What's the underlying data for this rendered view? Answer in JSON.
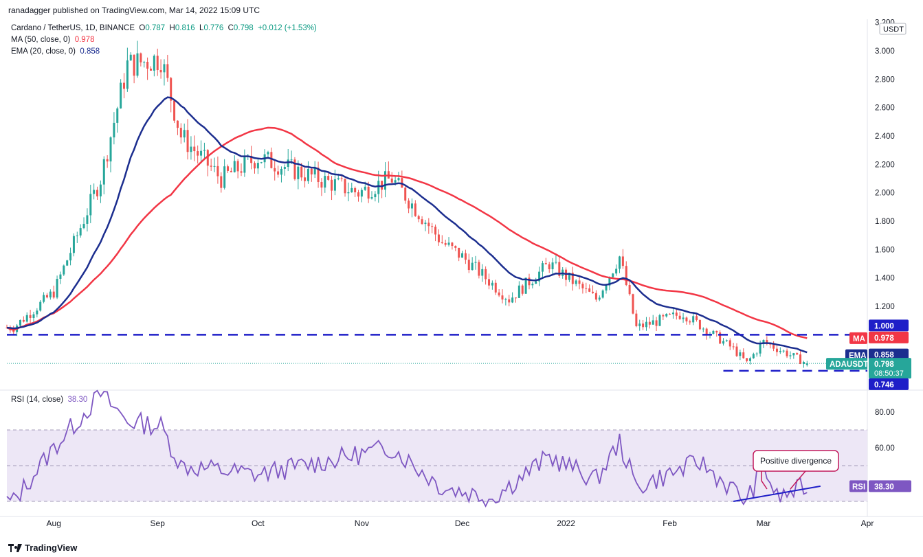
{
  "publisher": "ranadagger published on TradingView.com, Mar 14, 2022 15:09 UTC",
  "legend": {
    "symbol": "Cardano / TetherUS, 1D, BINANCE",
    "open_label": "O",
    "open": "0.787",
    "high_label": "H",
    "high": "0.816",
    "low_label": "L",
    "low": "0.776",
    "close_label": "C",
    "close": "0.798",
    "change": "+0.012 (+1.53%)",
    "ma_label": "MA (50, close, 0)",
    "ma_value": "0.978",
    "ema_label": "EMA (20, close, 0)",
    "ema_value": "0.858",
    "rsi_label": "RSI (14, close)",
    "rsi_value": "38.30"
  },
  "colors": {
    "up": "#26a69a",
    "down": "#ef5350",
    "ma": "#f23645",
    "ema": "#1c2e8f",
    "rsi": "#7e57c2",
    "rsi_band": "#ede7f6",
    "level": "#1e1ec8",
    "price_tag": "#26a69a"
  },
  "chart_data": {
    "type": "candlestick",
    "price_axis": {
      "currency": "USDT",
      "ticks": [
        "3.200",
        "3.000",
        "2.800",
        "2.600",
        "2.400",
        "2.200",
        "2.000",
        "1.800",
        "1.600",
        "1.400",
        "1.200"
      ],
      "range": [
        0.72,
        3.2
      ]
    },
    "x_labels": [
      "Aug",
      "Sep",
      "Oct",
      "Nov",
      "Dec",
      "2022",
      "Feb",
      "Mar",
      "Apr"
    ],
    "levels": [
      {
        "value": 1.0,
        "label": "1.000"
      },
      {
        "value": 0.746,
        "label": "0.746"
      }
    ],
    "last_price": {
      "label": "ADAUSDT",
      "value": "0.798",
      "countdown": "08:50:37"
    },
    "ma_tag": {
      "label": "MA",
      "value": "0.978"
    },
    "ema_tag": {
      "label": "EMA",
      "value": "0.858"
    },
    "key_closes": [
      {
        "date": "2021-07-20",
        "close": 1.05
      },
      {
        "date": "2021-08-01",
        "close": 1.3
      },
      {
        "date": "2021-08-15",
        "close": 2.1
      },
      {
        "date": "2021-08-23",
        "close": 2.9
      },
      {
        "date": "2021-09-02",
        "close": 2.95
      },
      {
        "date": "2021-09-08",
        "close": 2.4
      },
      {
        "date": "2021-09-20",
        "close": 2.1
      },
      {
        "date": "2021-10-01",
        "close": 2.25
      },
      {
        "date": "2021-10-31",
        "close": 2.0
      },
      {
        "date": "2021-11-10",
        "close": 2.1
      },
      {
        "date": "2021-11-25",
        "close": 1.65
      },
      {
        "date": "2021-12-01",
        "close": 1.55
      },
      {
        "date": "2021-12-15",
        "close": 1.25
      },
      {
        "date": "2021-12-27",
        "close": 1.5
      },
      {
        "date": "2022-01-10",
        "close": 1.25
      },
      {
        "date": "2022-01-17",
        "close": 1.55
      },
      {
        "date": "2022-01-22",
        "close": 1.05
      },
      {
        "date": "2022-02-05",
        "close": 1.15
      },
      {
        "date": "2022-02-20",
        "close": 0.9
      },
      {
        "date": "2022-02-24",
        "close": 0.8
      },
      {
        "date": "2022-03-01",
        "close": 0.95
      },
      {
        "date": "2022-03-14",
        "close": 0.798
      }
    ],
    "rsi": {
      "ticks": [
        "80.00",
        "60.00"
      ],
      "band": [
        30,
        70
      ],
      "value": "38.30",
      "annotation": "Positive divergence",
      "key_values": [
        {
          "date": "2021-07-20",
          "value": 30
        },
        {
          "date": "2021-08-01",
          "value": 60
        },
        {
          "date": "2021-08-15",
          "value": 90
        },
        {
          "date": "2021-08-23",
          "value": 75
        },
        {
          "date": "2021-09-02",
          "value": 72
        },
        {
          "date": "2021-09-08",
          "value": 50
        },
        {
          "date": "2021-10-01",
          "value": 45
        },
        {
          "date": "2021-11-10",
          "value": 60
        },
        {
          "date": "2021-11-25",
          "value": 38
        },
        {
          "date": "2021-12-10",
          "value": 32
        },
        {
          "date": "2021-12-27",
          "value": 55
        },
        {
          "date": "2022-01-10",
          "value": 42
        },
        {
          "date": "2022-01-17",
          "value": 63
        },
        {
          "date": "2022-01-22",
          "value": 38
        },
        {
          "date": "2022-02-10",
          "value": 52
        },
        {
          "date": "2022-02-24",
          "value": 30
        },
        {
          "date": "2022-03-01",
          "value": 50
        },
        {
          "date": "2022-03-05",
          "value": 32
        },
        {
          "date": "2022-03-14",
          "value": 38.3
        }
      ]
    }
  },
  "footer": {
    "brand": "TradingView"
  }
}
